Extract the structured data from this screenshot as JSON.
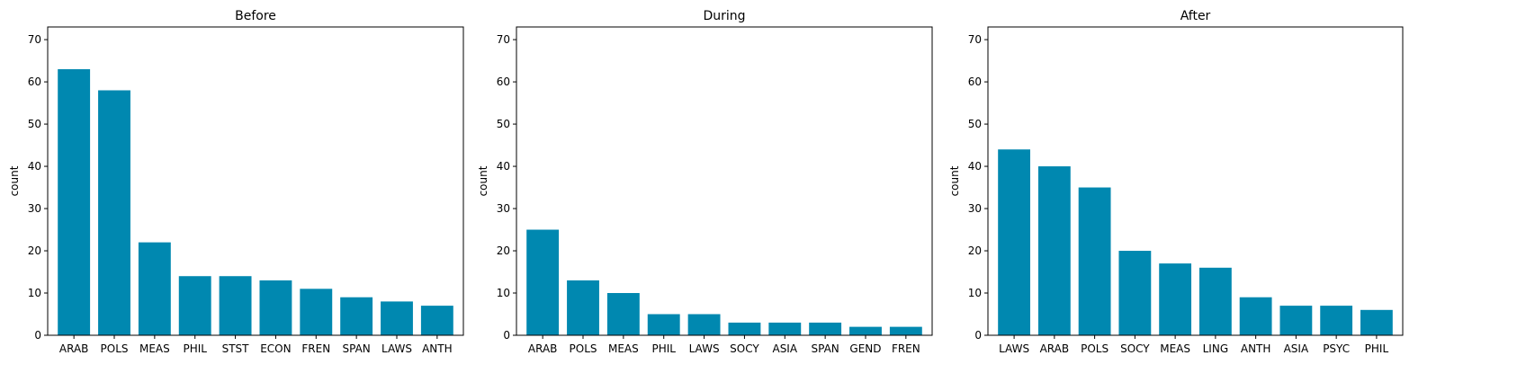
{
  "colors": {
    "bar": "#0088b0",
    "axis": "#000000",
    "background": "#ffffff"
  },
  "chart_data": [
    {
      "type": "bar",
      "title": "Before",
      "ylabel": "count",
      "ylim": [
        0,
        73
      ],
      "yticks": [
        0,
        10,
        20,
        30,
        40,
        50,
        60,
        70
      ],
      "grid": false,
      "categories": [
        "ARAB",
        "POLS",
        "MEAS",
        "PHIL",
        "STST",
        "ECON",
        "FREN",
        "SPAN",
        "LAWS",
        "ANTH"
      ],
      "values": [
        63,
        58,
        22,
        14,
        14,
        13,
        11,
        9,
        8,
        7
      ]
    },
    {
      "type": "bar",
      "title": "During",
      "ylabel": "count",
      "ylim": [
        0,
        73
      ],
      "yticks": [
        0,
        10,
        20,
        30,
        40,
        50,
        60,
        70
      ],
      "grid": false,
      "categories": [
        "ARAB",
        "POLS",
        "MEAS",
        "PHIL",
        "LAWS",
        "SOCY",
        "ASIA",
        "SPAN",
        "GEND",
        "FREN"
      ],
      "values": [
        25,
        13,
        10,
        5,
        5,
        3,
        3,
        3,
        2,
        2
      ]
    },
    {
      "type": "bar",
      "title": "After",
      "ylabel": "count",
      "ylim": [
        0,
        73
      ],
      "yticks": [
        0,
        10,
        20,
        30,
        40,
        50,
        60,
        70
      ],
      "grid": false,
      "categories": [
        "LAWS",
        "ARAB",
        "POLS",
        "SOCY",
        "MEAS",
        "LING",
        "ANTH",
        "ASIA",
        "PSYC",
        "PHIL"
      ],
      "values": [
        44,
        40,
        35,
        20,
        17,
        16,
        9,
        7,
        7,
        6
      ]
    }
  ]
}
